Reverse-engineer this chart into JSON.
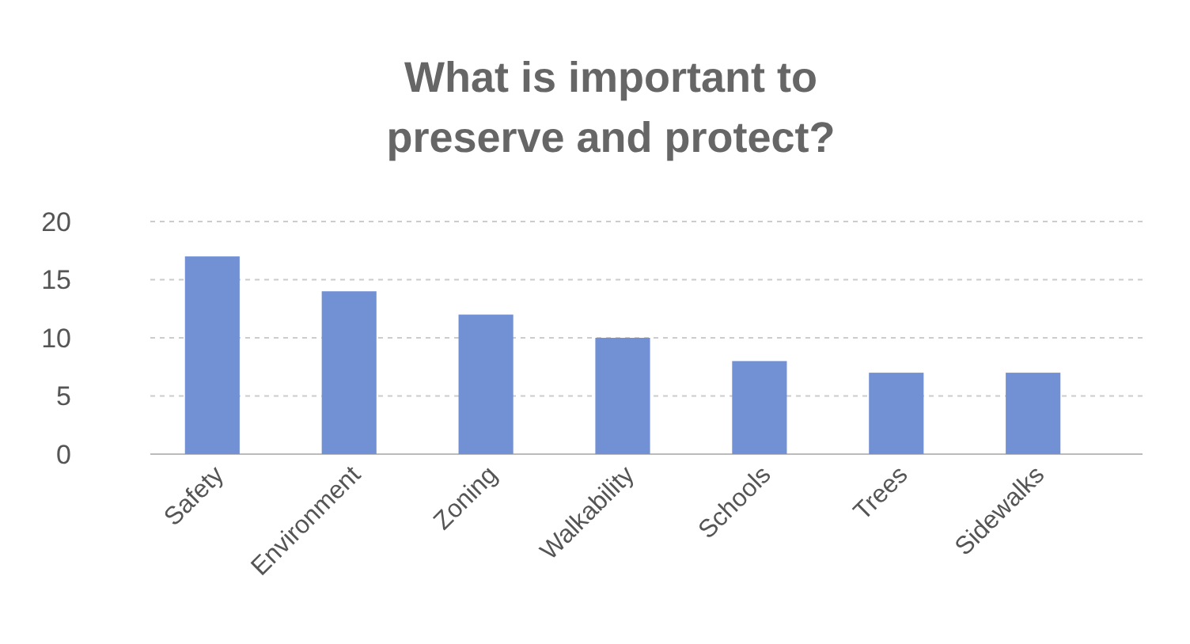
{
  "chart_data": {
    "type": "bar",
    "title": "What is important to\npreserve and protect?",
    "categories": [
      "Safety",
      "Environment",
      "Zoning",
      "Walkability",
      "Schools",
      "Trees",
      "Sidewalks"
    ],
    "values": [
      17,
      14,
      12,
      10,
      8,
      7,
      7
    ],
    "color": "#7290d4",
    "ylim": [
      0,
      20
    ],
    "yticks": [
      0,
      5,
      10,
      15,
      20
    ],
    "grid": "y"
  }
}
